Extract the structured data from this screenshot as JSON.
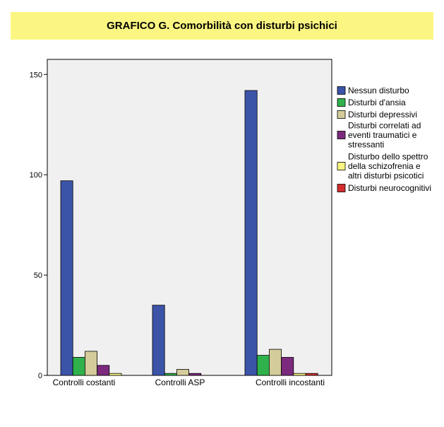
{
  "chart_data": {
    "type": "bar",
    "title": "GRAFICO G. Comorbilità con disturbi psichici",
    "categories": [
      "Controlli costanti",
      "Controlli ASP",
      "Controlli incostanti"
    ],
    "series": [
      {
        "name": "Nessun disturbo",
        "color": "#3c54a8",
        "values": [
          97,
          35,
          142
        ]
      },
      {
        "name": "Disturbi d'ansia",
        "color": "#2fb14b",
        "values": [
          9,
          1,
          10
        ]
      },
      {
        "name": "Disturbi depressivi",
        "color": "#d4cc9a",
        "values": [
          12,
          3,
          13
        ]
      },
      {
        "name": "Disturbi correlati ad eventi traumatici e stressanti",
        "color": "#7b2a7d",
        "values": [
          5,
          1,
          9
        ]
      },
      {
        "name": "Disturbo dello spettro della schizofrenia e altri disturbi psicotici",
        "color": "#fbf682",
        "values": [
          1,
          0,
          1
        ]
      },
      {
        "name": "Disturbi neurocognitivi",
        "color": "#d42d2d",
        "values": [
          0,
          0,
          1
        ]
      }
    ],
    "legend_lines": [
      [
        "Nessun disturbo"
      ],
      [
        "Disturbi d'ansia"
      ],
      [
        "Disturbi depressivi"
      ],
      [
        "Disturbi correlati ad",
        "eventi traumatici e",
        "stressanti"
      ],
      [
        "Disturbo dello spettro",
        "della schizofrenia e",
        "altri disturbi psicotici"
      ],
      [
        "Disturbi neurocognitivi"
      ]
    ],
    "yticks": [
      0,
      50,
      100,
      150
    ],
    "ylim": [
      0,
      157.5
    ],
    "grid": false,
    "legend_position": "right",
    "plot_background": "#f0f0f0"
  }
}
